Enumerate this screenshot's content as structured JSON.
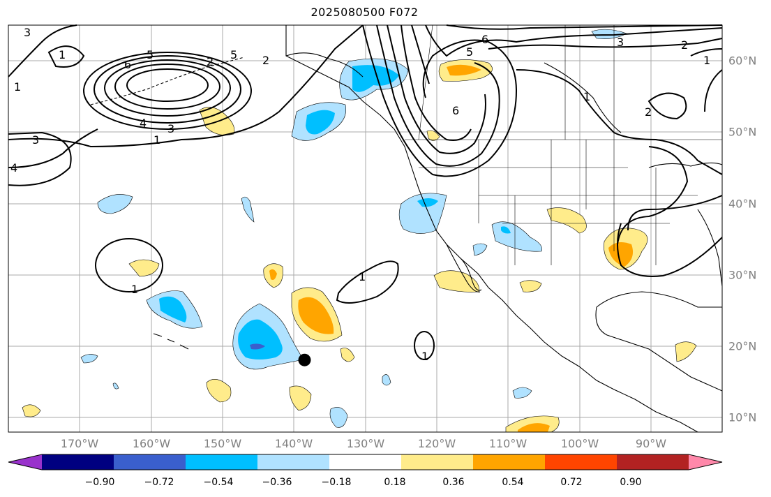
{
  "title": "2025080500 F072",
  "map": {
    "projection": "cylindrical",
    "lon_range": [
      -180,
      -80
    ],
    "lat_range": [
      8,
      65
    ],
    "marker": {
      "name": "storm-center-marker",
      "lon": -138.5,
      "lat": 18.1
    },
    "contour_labels": [
      "3",
      "1",
      "5",
      "6",
      "2",
      "5",
      "4",
      "3",
      "1",
      "3",
      "4",
      "1",
      "2",
      "3",
      "2",
      "1",
      "6",
      "5",
      "6",
      "1",
      "1",
      "1",
      "2",
      "1"
    ]
  },
  "axes": {
    "lon_labels": [
      "170°W",
      "160°W",
      "150°W",
      "140°W",
      "130°W",
      "120°W",
      "110°W",
      "100°W",
      "90°W"
    ],
    "lat_labels": [
      "60°N",
      "50°N",
      "40°N",
      "30°N",
      "20°N",
      "10°N"
    ]
  },
  "colorbar": {
    "colors": [
      "#9932cc",
      "#000080",
      "#3a5fcd",
      "#00bfff",
      "#b0e2ff",
      "#ffffff",
      "#ffec8b",
      "#ffa500",
      "#ff4500",
      "#b22222",
      "#ff88aa"
    ],
    "tick_labels": [
      "−0.90",
      "−0.72",
      "−0.54",
      "−0.36",
      "−0.18",
      "0.18",
      "0.36",
      "0.54",
      "0.72",
      "0.90"
    ]
  }
}
